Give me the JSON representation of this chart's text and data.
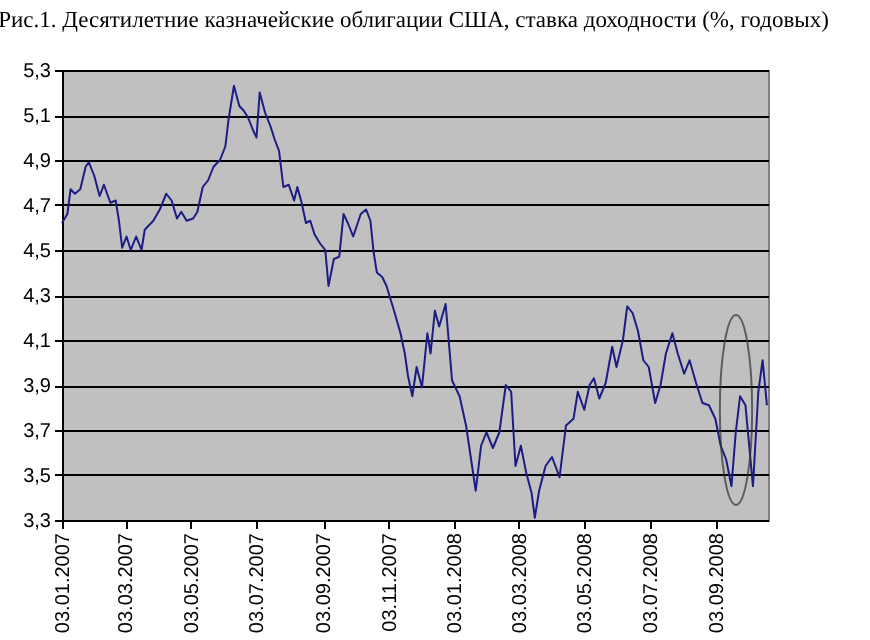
{
  "chart_data": {
    "type": "line",
    "title": "Рис.1. Десятилетние казначейские облигации США, ставка доходности (%, годовых)",
    "x": [
      "2007-01-03",
      "2007-01-08",
      "2007-01-11",
      "2007-01-15",
      "2007-01-20",
      "2007-01-25",
      "2007-01-28",
      "2007-02-02",
      "2007-02-07",
      "2007-02-11",
      "2007-02-17",
      "2007-02-22",
      "2007-02-25",
      "2007-02-28",
      "2007-03-04",
      "2007-03-08",
      "2007-03-13",
      "2007-03-18",
      "2007-03-21",
      "2007-03-29",
      "2007-04-04",
      "2007-04-10",
      "2007-04-15",
      "2007-04-20",
      "2007-04-24",
      "2007-04-29",
      "2007-05-05",
      "2007-05-09",
      "2007-05-14",
      "2007-05-19",
      "2007-05-24",
      "2007-05-30",
      "2007-06-04",
      "2007-06-07",
      "2007-06-12",
      "2007-06-17",
      "2007-06-21",
      "2007-06-25",
      "2007-06-30",
      "2007-07-03",
      "2007-07-06",
      "2007-07-11",
      "2007-07-16",
      "2007-07-20",
      "2007-07-24",
      "2007-07-28",
      "2007-08-02",
      "2007-08-07",
      "2007-08-10",
      "2007-08-14",
      "2007-08-18",
      "2007-08-22",
      "2007-08-26",
      "2007-08-31",
      "2007-09-05",
      "2007-09-08",
      "2007-09-13",
      "2007-09-18",
      "2007-09-22",
      "2007-09-26",
      "2007-10-01",
      "2007-10-08",
      "2007-10-13",
      "2007-10-17",
      "2007-10-20",
      "2007-10-23",
      "2007-10-28",
      "2007-11-01",
      "2007-11-08",
      "2007-11-14",
      "2007-11-18",
      "2007-11-21",
      "2007-11-25",
      "2007-11-29",
      "2007-12-04",
      "2007-12-09",
      "2007-12-12",
      "2007-12-16",
      "2007-12-20",
      "2007-12-26",
      "2008-01-01",
      "2008-01-08",
      "2008-01-14",
      "2008-01-23",
      "2008-01-28",
      "2008-02-02",
      "2008-02-08",
      "2008-02-14",
      "2008-02-20",
      "2008-02-25",
      "2008-02-29",
      "2008-03-05",
      "2008-03-10",
      "2008-03-15",
      "2008-03-18",
      "2008-03-22",
      "2008-03-28",
      "2008-04-03",
      "2008-04-10",
      "2008-04-16",
      "2008-04-23",
      "2008-04-27",
      "2008-05-03",
      "2008-05-08",
      "2008-05-12",
      "2008-05-17",
      "2008-05-23",
      "2008-05-29",
      "2008-06-02",
      "2008-06-08",
      "2008-06-12",
      "2008-06-17",
      "2008-06-22",
      "2008-06-27",
      "2008-07-02",
      "2008-07-08",
      "2008-07-13",
      "2008-07-18",
      "2008-07-24",
      "2008-07-29",
      "2008-08-04",
      "2008-08-09",
      "2008-08-15",
      "2008-08-21",
      "2008-08-27",
      "2008-09-02",
      "2008-09-07",
      "2008-09-12",
      "2008-09-17",
      "2008-09-21",
      "2008-09-25",
      "2008-09-30",
      "2008-10-07",
      "2008-10-12",
      "2008-10-16",
      "2008-10-20"
    ],
    "series": [
      {
        "color": "#1c1c84",
        "values": [
          4.62,
          4.66,
          4.77,
          4.75,
          4.77,
          4.87,
          4.89,
          4.83,
          4.74,
          4.79,
          4.71,
          4.72,
          4.63,
          4.51,
          4.56,
          4.5,
          4.56,
          4.5,
          4.59,
          4.63,
          4.68,
          4.75,
          4.72,
          4.64,
          4.67,
          4.63,
          4.64,
          4.67,
          4.78,
          4.81,
          4.87,
          4.9,
          4.96,
          5.08,
          5.23,
          5.14,
          5.12,
          5.09,
          5.03,
          5.0,
          5.2,
          5.11,
          5.05,
          4.99,
          4.94,
          4.78,
          4.79,
          4.72,
          4.78,
          4.71,
          4.62,
          4.63,
          4.57,
          4.53,
          4.5,
          4.34,
          4.46,
          4.47,
          4.66,
          4.62,
          4.56,
          4.66,
          4.68,
          4.63,
          4.49,
          4.4,
          4.38,
          4.34,
          4.23,
          4.13,
          4.04,
          3.94,
          3.85,
          3.98,
          3.89,
          4.13,
          4.04,
          4.23,
          4.16,
          4.26,
          3.92,
          3.85,
          3.72,
          3.43,
          3.63,
          3.69,
          3.62,
          3.69,
          3.9,
          3.87,
          3.54,
          3.63,
          3.51,
          3.42,
          3.31,
          3.43,
          3.54,
          3.58,
          3.49,
          3.72,
          3.75,
          3.87,
          3.79,
          3.9,
          3.93,
          3.84,
          3.91,
          4.07,
          3.98,
          4.1,
          4.25,
          4.22,
          4.14,
          4.01,
          3.98,
          3.82,
          3.9,
          4.04,
          4.13,
          4.04,
          3.95,
          4.01,
          3.91,
          3.82,
          3.81,
          3.75,
          3.63,
          3.57,
          3.45,
          3.69,
          3.85,
          3.81,
          3.45,
          3.87,
          4.01,
          3.81
        ]
      }
    ],
    "xlim": [
      "2007-01-03",
      "2008-10-21"
    ],
    "xticks": [
      {
        "value": "2007-01-03",
        "label": "03.01.2007"
      },
      {
        "value": "2007-03-03",
        "label": "03.03.2007"
      },
      {
        "value": "2007-05-03",
        "label": "03.05.2007"
      },
      {
        "value": "2007-07-03",
        "label": "03.07.2007"
      },
      {
        "value": "2007-09-03",
        "label": "03.09.2007"
      },
      {
        "value": "2007-11-03",
        "label": "03.11.2007"
      },
      {
        "value": "2008-01-03",
        "label": "03.01.2008"
      },
      {
        "value": "2008-03-03",
        "label": "03.03.2008"
      },
      {
        "value": "2008-05-03",
        "label": "03.05.2008"
      },
      {
        "value": "2008-07-03",
        "label": "03.07.2008"
      },
      {
        "value": "2008-09-03",
        "label": "03.09.2008"
      }
    ],
    "ylim": [
      3.3,
      5.3
    ],
    "yticks": [
      {
        "value": 3.3,
        "label": "3,3"
      },
      {
        "value": 3.5,
        "label": "3,5"
      },
      {
        "value": 3.7,
        "label": "3,7"
      },
      {
        "value": 3.9,
        "label": "3,9"
      },
      {
        "value": 4.1,
        "label": "4,1"
      },
      {
        "value": 4.3,
        "label": "4,3"
      },
      {
        "value": 4.5,
        "label": "4,5"
      },
      {
        "value": 4.7,
        "label": "4,7"
      },
      {
        "value": 4.9,
        "label": "4,9"
      },
      {
        "value": 5.1,
        "label": "5,1"
      },
      {
        "value": 5.3,
        "label": "5,3"
      }
    ],
    "grid": "y",
    "marker": "none",
    "line_style": "solid"
  }
}
